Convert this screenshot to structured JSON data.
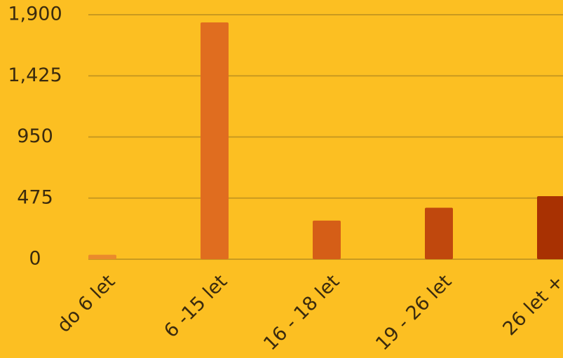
{
  "chart_data": {
    "type": "bar",
    "categories": [
      "do 6 let",
      "6 -15 let",
      "16 - 18 let",
      "19 - 26 let",
      "26 let +"
    ],
    "values": [
      35,
      1840,
      300,
      400,
      490
    ],
    "colors": [
      "#ea8a2c",
      "#e06d1f",
      "#d55e17",
      "#c0480d",
      "#a83102"
    ],
    "ylim": [
      0,
      1900
    ],
    "yticks": [
      0,
      475,
      950,
      {
        "value": 1425,
        "label": "1,425"
      },
      {
        "value": 1900,
        "label": "1,900"
      }
    ],
    "grid": true
  }
}
